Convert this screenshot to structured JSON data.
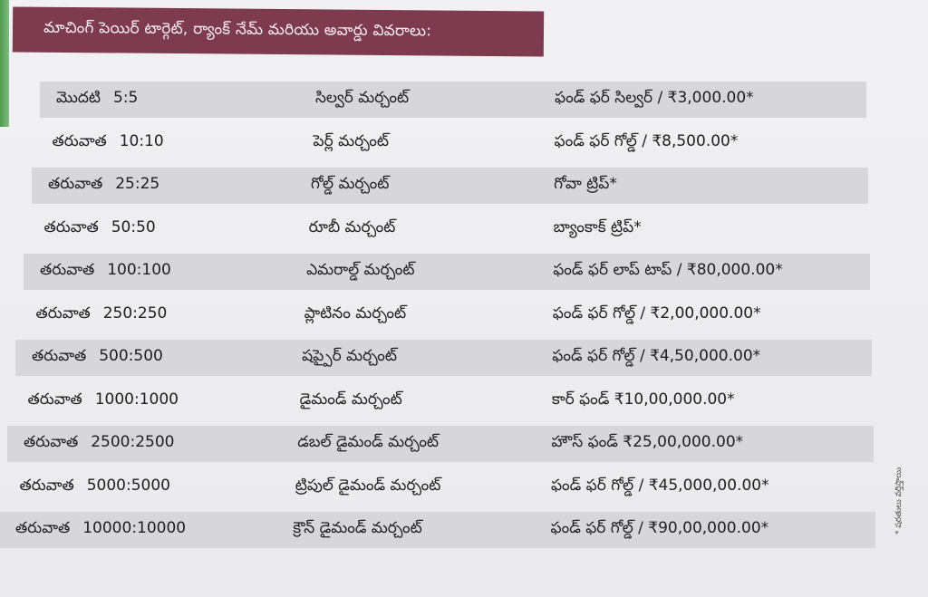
{
  "heading": "మాచింగ్ పెయిర్ టార్గెట్, ర్యాంక్ నేమ్ మరియు అవార్డు వివరాలు:",
  "rows": [
    {
      "prefix": "మొదటి",
      "ratio": "5:5",
      "rank": "సిల్వర్ మర్చంట్",
      "award": "ఫండ్ ఫర్ సిల్వర్ / ₹3,000.00*"
    },
    {
      "prefix": "తరువాత",
      "ratio": "10:10",
      "rank": "పెర్ల్ మర్చంట్",
      "award": "ఫండ్ ఫర్ గోల్డ్ / ₹8,500.00*"
    },
    {
      "prefix": "తరువాత",
      "ratio": "25:25",
      "rank": "గోల్డ్ మర్చంట్",
      "award": "గోవా ట్రిప్*"
    },
    {
      "prefix": "తరువాత",
      "ratio": "50:50",
      "rank": "రూబీ మర్చంట్",
      "award": "బ్యాంకాక్ ట్రిప్*"
    },
    {
      "prefix": "తరువాత",
      "ratio": "100:100",
      "rank": "ఎమరాల్డ్ మర్చంట్",
      "award": "ఫండ్ ఫర్ లాప్ టాప్ / ₹80,000.00*"
    },
    {
      "prefix": "తరువాత",
      "ratio": "250:250",
      "rank": "ప్లాటినం మర్చంట్",
      "award": "ఫండ్ ఫర్ గోల్డ్ / ₹2,00,000.00*"
    },
    {
      "prefix": "తరువాత",
      "ratio": "500:500",
      "rank": "షప్పైర్ మర్చంట్",
      "award": "ఫండ్ ఫర్ గోల్డ్ / ₹4,50,000.00*"
    },
    {
      "prefix": "తరువాత",
      "ratio": "1000:1000",
      "rank": "డైమండ్ మర్చంట్",
      "award": "కార్ ఫండ్ ₹10,00,000.00*"
    },
    {
      "prefix": "తరువాత",
      "ratio": "2500:2500",
      "rank": "డబల్ డైమండ్ మర్చంట్",
      "award": "హౌస్ ఫండ్ ₹25,00,000.00*"
    },
    {
      "prefix": "తరువాత",
      "ratio": "5000:5000",
      "rank": "ట్రిపుల్ డైమండ్ మర్చంట్",
      "award": "ఫండ్ ఫర్ గోల్డ్ / ₹45,000,00.00*"
    },
    {
      "prefix": "తరువాత",
      "ratio": "10000:10000",
      "rank": "క్రౌన్ డైమండ్ మర్చంట్",
      "award": "ఫండ్ ఫర్ గోల్డ్ / ₹90,00,000.00*"
    }
  ],
  "side_note": "* షరతులు వర్తిస్తాయి"
}
